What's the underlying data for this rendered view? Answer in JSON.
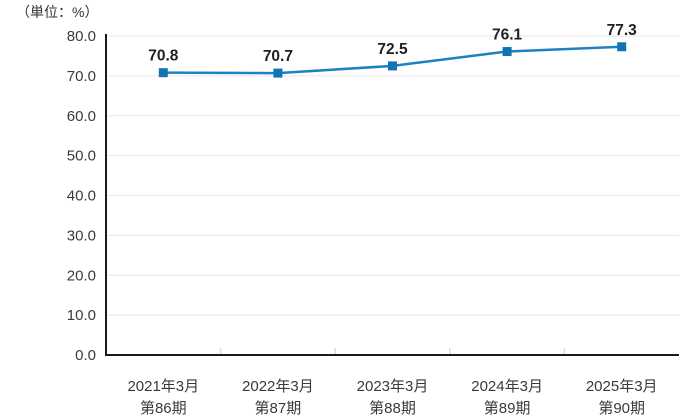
{
  "unit_label": "（単位：%）",
  "chart_data": {
    "type": "line",
    "title": "",
    "xlabel": "",
    "ylabel": "（単位：%）",
    "categories": [
      {
        "line1": "2021年3月",
        "line2": "第86期"
      },
      {
        "line1": "2022年3月",
        "line2": "第87期"
      },
      {
        "line1": "2023年3月",
        "line2": "第88期"
      },
      {
        "line1": "2024年3月",
        "line2": "第89期"
      },
      {
        "line1": "2025年3月",
        "line2": "第90期"
      }
    ],
    "values": [
      70.8,
      70.7,
      72.5,
      76.1,
      77.3
    ],
    "value_labels": [
      "70.8",
      "70.7",
      "72.5",
      "76.1",
      "77.3"
    ],
    "ylim": [
      0,
      80
    ],
    "yticks": [
      0,
      10,
      20,
      30,
      40,
      50,
      60,
      70,
      80
    ],
    "ytick_labels": [
      "0.0",
      "10.0",
      "20.0",
      "30.0",
      "40.0",
      "50.0",
      "60.0",
      "70.0",
      "80.0"
    ],
    "grid": true,
    "legend": "none",
    "colors": {
      "line": "#1f82c0",
      "marker": "#1173b0",
      "grid": "#e6e6e6",
      "boundary_tick": "#dddddd",
      "axis": "#1a1a1a",
      "tick_text": "#3a3a3a",
      "value_text": "#1f1f1f"
    }
  }
}
